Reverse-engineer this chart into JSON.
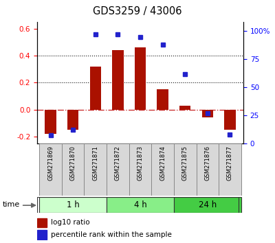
{
  "title": "GDS3259 / 43006",
  "samples": [
    "GSM271869",
    "GSM271870",
    "GSM271871",
    "GSM271872",
    "GSM271873",
    "GSM271874",
    "GSM271875",
    "GSM271876",
    "GSM271877"
  ],
  "log10_ratio": [
    -0.18,
    -0.15,
    0.32,
    0.44,
    0.46,
    0.15,
    0.03,
    -0.06,
    -0.15
  ],
  "percentile_rank": [
    7,
    12,
    97,
    97,
    95,
    88,
    62,
    27,
    8
  ],
  "ylim": [
    -0.25,
    0.65
  ],
  "y2lim": [
    0,
    108.33
  ],
  "yticks": [
    -0.2,
    0.0,
    0.2,
    0.4,
    0.6
  ],
  "y2ticks": [
    0,
    25,
    50,
    75,
    100
  ],
  "y2tick_labels": [
    "0",
    "25",
    "50",
    "75",
    "100%"
  ],
  "hlines": [
    0.2,
    0.4
  ],
  "bar_color": "#aa1100",
  "dot_color": "#2222cc",
  "zero_line_color": "#cc3333",
  "hline_color": "#111111",
  "bg_color": "#ffffff",
  "time_groups": [
    {
      "label": "1 h",
      "start": 0,
      "end": 3,
      "color": "#ccffcc"
    },
    {
      "label": "4 h",
      "start": 3,
      "end": 6,
      "color": "#88ee88"
    },
    {
      "label": "24 h",
      "start": 6,
      "end": 9,
      "color": "#44cc44"
    }
  ],
  "legend_red": "log10 ratio",
  "legend_blue": "percentile rank within the sample",
  "bar_width": 0.5
}
